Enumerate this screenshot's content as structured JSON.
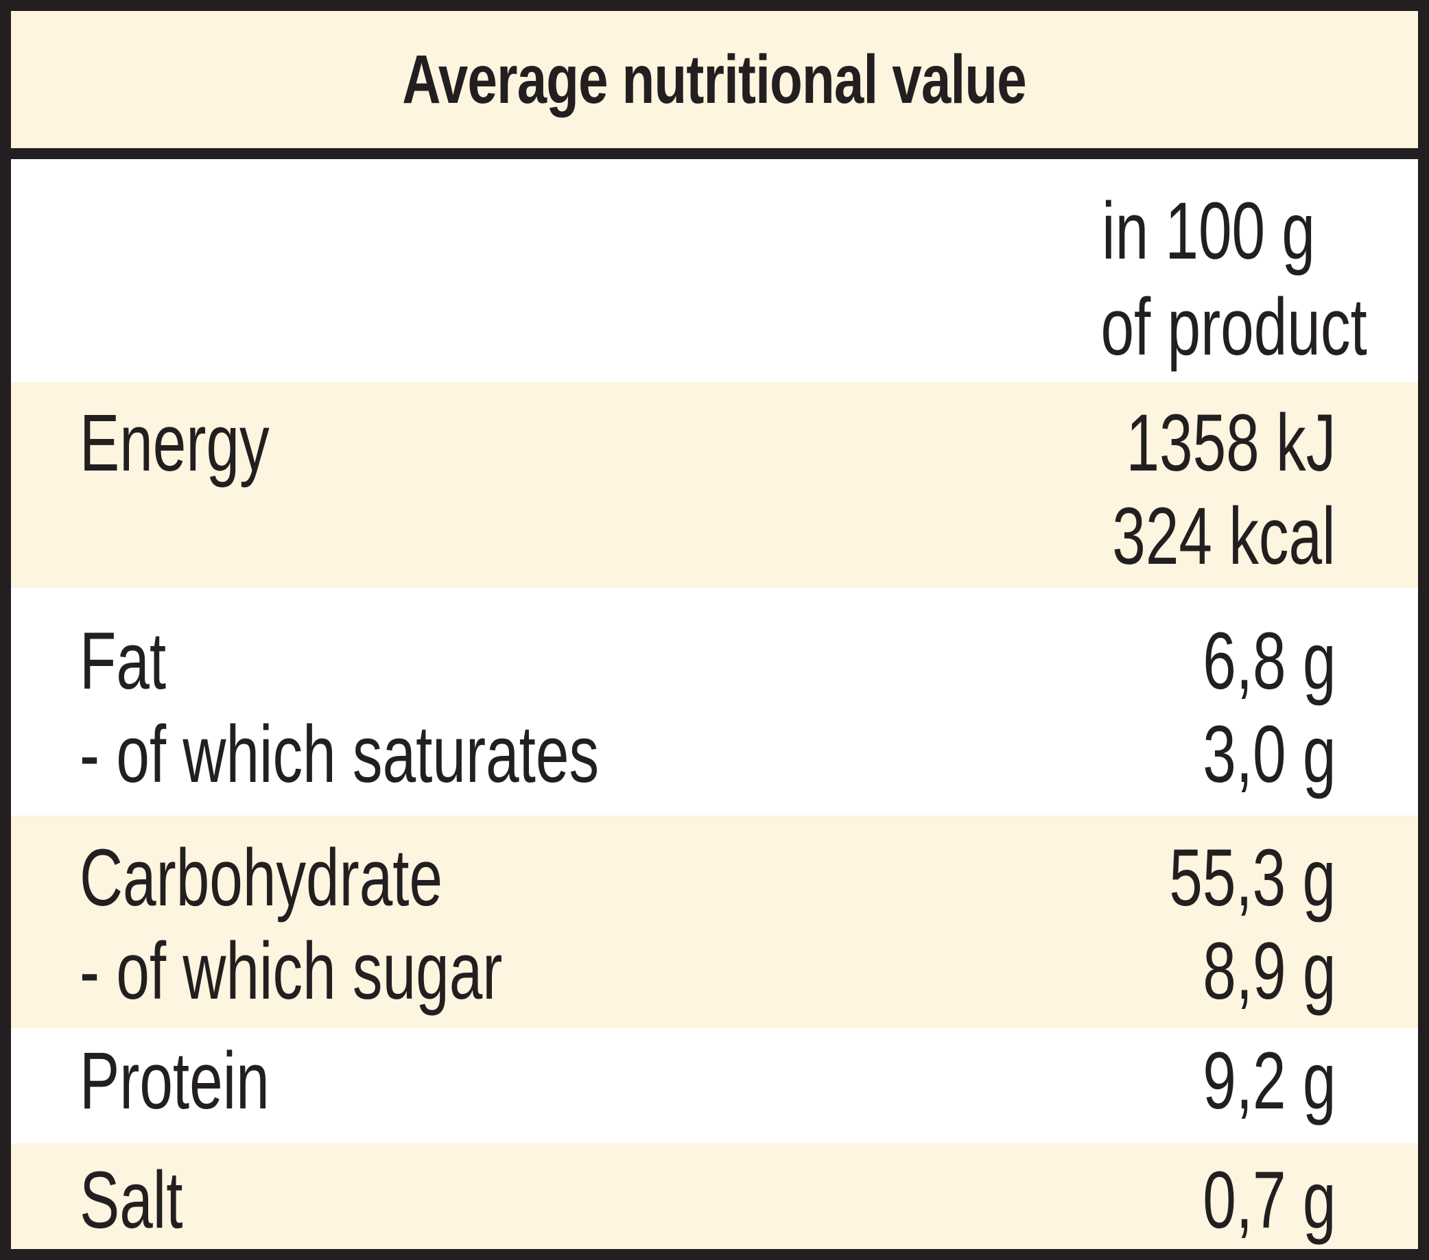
{
  "title": "Average nutritional value",
  "column_header": {
    "line1": "in 100 g",
    "line2": "of product"
  },
  "rows": [
    {
      "name_lines": [
        "Energy",
        ""
      ],
      "value_lines": [
        "1358 kJ",
        "324 kcal"
      ]
    },
    {
      "name_lines": [
        "Fat",
        "- of which saturates"
      ],
      "value_lines": [
        "6,8 g",
        "3,0 g"
      ]
    },
    {
      "name_lines": [
        "Carbohydrate",
        "- of which sugar"
      ],
      "value_lines": [
        "55,3 g",
        "8,9 g"
      ]
    },
    {
      "name_lines": [
        "Protein"
      ],
      "value_lines": [
        "9,2 g"
      ]
    },
    {
      "name_lines": [
        "Salt"
      ],
      "value_lines": [
        "0,7 g"
      ]
    }
  ],
  "colors": {
    "border": "#231f20",
    "cream": "#fdf5df",
    "white": "#ffffff",
    "text": "#231f20"
  }
}
